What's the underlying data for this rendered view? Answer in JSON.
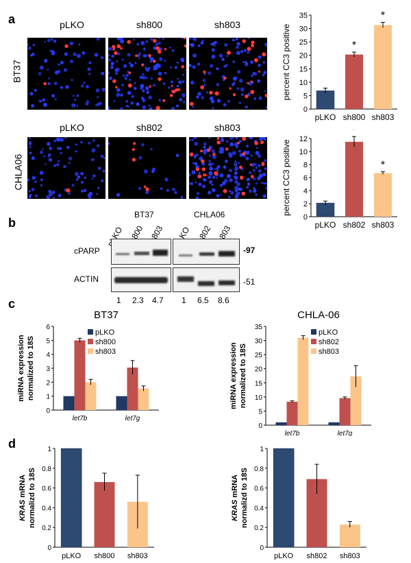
{
  "panel_letters": {
    "a": "a",
    "b": "b",
    "c": "c",
    "d": "d"
  },
  "microscopy": {
    "row1": {
      "label": "BT37",
      "columns": [
        "pLKO",
        "sh800",
        "sh803"
      ]
    },
    "row2": {
      "label": "CHLA06",
      "columns": [
        "pLKO",
        "sh802",
        "sh803"
      ]
    }
  },
  "western": {
    "groups": [
      {
        "name": "BT37",
        "lanes": [
          "pLKO",
          "sh800",
          "sh803"
        ]
      },
      {
        "name": "CHLA06",
        "lanes": [
          "pLKO",
          "sh802",
          "sh803"
        ]
      }
    ],
    "rows": [
      "cPARP",
      "ACTIN"
    ],
    "markers": [
      "-97",
      "-51"
    ],
    "quantification": [
      "1",
      "2.3",
      "4.7",
      "1",
      "6.5",
      "8.6"
    ]
  },
  "colors": {
    "navy": "#2c4a72",
    "red": "#c0504d",
    "peach": "#fbc58a",
    "dark_navy": "#1f3864"
  },
  "chart_data": [
    {
      "id": "a-top",
      "type": "bar",
      "categories": [
        "pLKO",
        "sh800",
        "sh803"
      ],
      "values": [
        6.8,
        20.3,
        31.3
      ],
      "errors": [
        1.0,
        0.9,
        1.0
      ],
      "significant": [
        false,
        true,
        true
      ],
      "sig_mark": "*",
      "ylabel": "percent CC3 positive",
      "ylim": [
        0,
        35
      ],
      "yticks": [
        "0",
        "5",
        "10",
        "15",
        "20",
        "25",
        "30",
        "35"
      ]
    },
    {
      "id": "a-bottom",
      "type": "bar",
      "categories": [
        "pLKO",
        "sh802",
        "sh803"
      ],
      "values": [
        2.1,
        11.5,
        6.7
      ],
      "errors": [
        0.3,
        0.8,
        0.2
      ],
      "significant": [
        false,
        true,
        true
      ],
      "sig_mark": "*",
      "ylabel": "percent CC3 positive",
      "ylim": [
        0,
        12
      ],
      "yticks": [
        "0",
        "2",
        "4",
        "6",
        "8",
        "10",
        "12"
      ]
    },
    {
      "id": "c-left",
      "type": "bar",
      "title": "BT37",
      "categories": [
        "let7b",
        "let7g"
      ],
      "series": [
        {
          "name": "pLKO",
          "values": [
            1.0,
            1.0
          ],
          "errors": [
            0,
            0
          ]
        },
        {
          "name": "sh800",
          "values": [
            5.0,
            3.05
          ],
          "errors": [
            0.15,
            0.5
          ]
        },
        {
          "name": "sh803",
          "values": [
            2.0,
            1.55
          ],
          "errors": [
            0.2,
            0.18
          ]
        }
      ],
      "ylabel_line1": "miRNA expression",
      "ylabel_line2": "normalized to 18S",
      "ylim": [
        0,
        6
      ],
      "yticks": [
        "0",
        "1",
        "2",
        "3",
        "4",
        "5",
        "6"
      ]
    },
    {
      "id": "c-right",
      "type": "bar",
      "title": "CHLA-06",
      "categories": [
        "let7b",
        "let7g"
      ],
      "series": [
        {
          "name": "pLKO",
          "values": [
            1.0,
            1.0
          ],
          "errors": [
            0,
            0
          ]
        },
        {
          "name": "sh802",
          "values": [
            8.3,
            9.6
          ],
          "errors": [
            0.3,
            0.4
          ]
        },
        {
          "name": "sh803",
          "values": [
            31.0,
            17.3
          ],
          "errors": [
            0.7,
            3.8
          ]
        }
      ],
      "ylabel_line1": "miRNA expression",
      "ylabel_line2": "normalized to 18S",
      "ylim": [
        0,
        35
      ],
      "yticks": [
        "0",
        "5",
        "10",
        "15",
        "20",
        "25",
        "30",
        "35"
      ]
    },
    {
      "id": "d-left",
      "type": "bar",
      "categories": [
        "pLKO",
        "sh800",
        "sh803"
      ],
      "values": [
        1.0,
        0.66,
        0.46
      ],
      "errors": [
        0,
        0.09,
        0.27
      ],
      "ylabel_line1": "KRAS mRNA",
      "ylabel_line2": "normalizd to 18S",
      "ylim": [
        0,
        1
      ],
      "yticks": [
        "0",
        "0.2",
        "0.4",
        "0.6",
        "0.8",
        "1"
      ]
    },
    {
      "id": "d-right",
      "type": "bar",
      "categories": [
        "pLKO",
        "sh802",
        "sh803"
      ],
      "values": [
        1.0,
        0.69,
        0.23
      ],
      "errors": [
        0,
        0.15,
        0.03
      ],
      "ylabel_line1": "KRAS mRNA",
      "ylabel_line2": "normalizd to 18S",
      "ylim": [
        0,
        1
      ],
      "yticks": [
        "0",
        "0.2",
        "0.4",
        "0.6",
        "0.8",
        "1"
      ]
    }
  ]
}
